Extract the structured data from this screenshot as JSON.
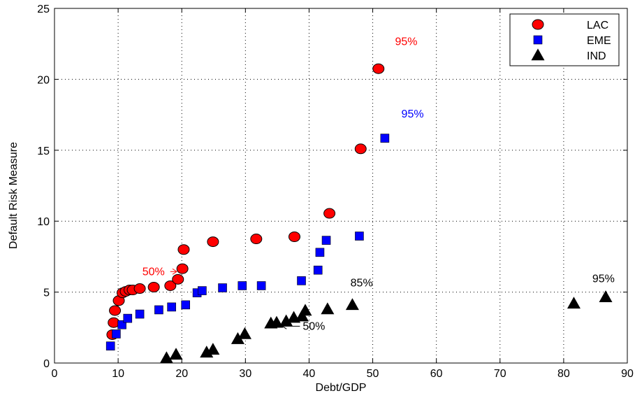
{
  "chart_data": {
    "type": "scatter",
    "title": "",
    "xlabel": "Debt/GDP",
    "ylabel": "Default Risk Measure",
    "xlim": [
      0,
      90
    ],
    "ylim": [
      0,
      25
    ],
    "xticks": [
      0,
      10,
      20,
      30,
      40,
      50,
      60,
      70,
      80,
      90
    ],
    "yticks": [
      0,
      5,
      10,
      15,
      20,
      25
    ],
    "grid": true,
    "legend_position": "top-right",
    "series": [
      {
        "name": "LAC",
        "marker": "circle",
        "color": "#ff0000",
        "points": [
          [
            9.1,
            2.0
          ],
          [
            9.3,
            2.85
          ],
          [
            9.5,
            3.7
          ],
          [
            10.1,
            4.4
          ],
          [
            10.7,
            4.95
          ],
          [
            11.2,
            5.05
          ],
          [
            11.8,
            5.15
          ],
          [
            12.3,
            5.15
          ],
          [
            13.4,
            5.25
          ],
          [
            15.6,
            5.35
          ],
          [
            18.2,
            5.45
          ],
          [
            19.4,
            5.9
          ],
          [
            20.1,
            6.65
          ],
          [
            20.3,
            8.0
          ],
          [
            24.9,
            8.55
          ],
          [
            31.7,
            8.75
          ],
          [
            37.7,
            8.9
          ],
          [
            43.2,
            10.55
          ],
          [
            48.1,
            15.1
          ],
          [
            50.9,
            20.75
          ]
        ]
      },
      {
        "name": "EME",
        "marker": "square",
        "color": "#0000ff",
        "points": [
          [
            8.8,
            1.2
          ],
          [
            9.7,
            2.05
          ],
          [
            10.6,
            2.7
          ],
          [
            11.5,
            3.15
          ],
          [
            13.4,
            3.45
          ],
          [
            16.4,
            3.75
          ],
          [
            18.4,
            3.95
          ],
          [
            20.6,
            4.1
          ],
          [
            22.4,
            4.95
          ],
          [
            23.2,
            5.1
          ],
          [
            26.4,
            5.3
          ],
          [
            29.5,
            5.45
          ],
          [
            32.5,
            5.45
          ],
          [
            38.8,
            5.8
          ],
          [
            41.4,
            6.55
          ],
          [
            41.7,
            7.8
          ],
          [
            42.7,
            8.65
          ],
          [
            47.9,
            8.95
          ],
          [
            51.9,
            15.85
          ]
        ]
      },
      {
        "name": "IND",
        "marker": "triangle",
        "color": "#000000",
        "points": [
          [
            17.6,
            0.35
          ],
          [
            19.1,
            0.6
          ],
          [
            23.9,
            0.75
          ],
          [
            24.9,
            0.95
          ],
          [
            28.8,
            1.7
          ],
          [
            29.9,
            2.05
          ],
          [
            34.0,
            2.8
          ],
          [
            34.9,
            2.85
          ],
          [
            36.4,
            2.95
          ],
          [
            37.6,
            3.2
          ],
          [
            38.9,
            3.3
          ],
          [
            39.4,
            3.7
          ],
          [
            42.9,
            3.8
          ],
          [
            46.8,
            4.1
          ],
          [
            81.6,
            4.2
          ],
          [
            86.6,
            4.65
          ]
        ]
      }
    ],
    "annotations": [
      {
        "text": "95%",
        "x": 53.5,
        "y": 22.4,
        "color": "#ff0000",
        "arrow": "none"
      },
      {
        "text": "95%",
        "x": 54.5,
        "y": 17.3,
        "color": "#0000ff",
        "arrow": "none"
      },
      {
        "text": "50%",
        "x": 13.8,
        "y": 6.2,
        "color": "#ff0000",
        "arrow": "right",
        "arrow_to": [
          19.2,
          6.2
        ]
      },
      {
        "text": "85%",
        "x": 46.5,
        "y": 5.4,
        "color": "#000000",
        "arrow": "none"
      },
      {
        "text": "95%",
        "x": 84.5,
        "y": 5.7,
        "color": "#000000",
        "arrow": "none"
      },
      {
        "text": "50%",
        "x": 39.0,
        "y": 2.35,
        "color": "#000000",
        "arrow": "left",
        "arrow_to": [
          35.8,
          2.35
        ]
      }
    ]
  }
}
